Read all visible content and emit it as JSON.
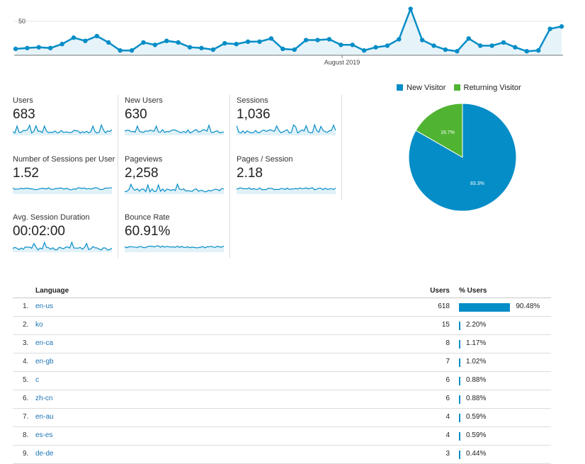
{
  "main_chart": {
    "y_tick_label": "50",
    "x_axis_label": "August 2019",
    "line_color": "#058dc7",
    "values": [
      8,
      9,
      10,
      9,
      14,
      22,
      18,
      24,
      16,
      6,
      6,
      16,
      13,
      18,
      16,
      10,
      9,
      7,
      15,
      14,
      17,
      17,
      21,
      8,
      7,
      19,
      19,
      20,
      13,
      13,
      6,
      10,
      12,
      20,
      58,
      19,
      12,
      7,
      5,
      21,
      12,
      12,
      16,
      10,
      5,
      6,
      33,
      36
    ]
  },
  "metrics": [
    {
      "label": "Users",
      "value": "683"
    },
    {
      "label": "New Users",
      "value": "630"
    },
    {
      "label": "Sessions",
      "value": "1,036"
    },
    {
      "label": "Number of Sessions per User",
      "value": "1.52"
    },
    {
      "label": "Pageviews",
      "value": "2,258"
    },
    {
      "label": "Pages / Session",
      "value": "2.18"
    },
    {
      "label": "Avg. Session Duration",
      "value": "00:02:00"
    },
    {
      "label": "Bounce Rate",
      "value": "60.91%"
    }
  ],
  "pie": {
    "legend": [
      {
        "label": "New Visitor",
        "color": "#058dc7"
      },
      {
        "label": "Returning Visitor",
        "color": "#50b432"
      }
    ],
    "slices": [
      {
        "label": "83.3%",
        "value": 83.3
      },
      {
        "label": "16.7%",
        "value": 16.7
      }
    ]
  },
  "table": {
    "headers": {
      "language": "Language",
      "users": "Users",
      "pct_users": "% Users"
    },
    "rows": [
      {
        "idx": "1.",
        "lang": "en-us",
        "users": "618",
        "pct": "90.48%",
        "frac": 90.48
      },
      {
        "idx": "2.",
        "lang": "ko",
        "users": "15",
        "pct": "2.20%",
        "frac": 2.2
      },
      {
        "idx": "3.",
        "lang": "en-ca",
        "users": "8",
        "pct": "1.17%",
        "frac": 1.17
      },
      {
        "idx": "4.",
        "lang": "en-gb",
        "users": "7",
        "pct": "1.02%",
        "frac": 1.02
      },
      {
        "idx": "5.",
        "lang": "c",
        "users": "6",
        "pct": "0.88%",
        "frac": 0.88
      },
      {
        "idx": "6.",
        "lang": "zh-cn",
        "users": "6",
        "pct": "0.88%",
        "frac": 0.88
      },
      {
        "idx": "7.",
        "lang": "en-au",
        "users": "4",
        "pct": "0.59%",
        "frac": 0.59
      },
      {
        "idx": "8.",
        "lang": "es-es",
        "users": "4",
        "pct": "0.59%",
        "frac": 0.59
      },
      {
        "idx": "9.",
        "lang": "de-de",
        "users": "3",
        "pct": "0.44%",
        "frac": 0.44
      }
    ]
  }
}
